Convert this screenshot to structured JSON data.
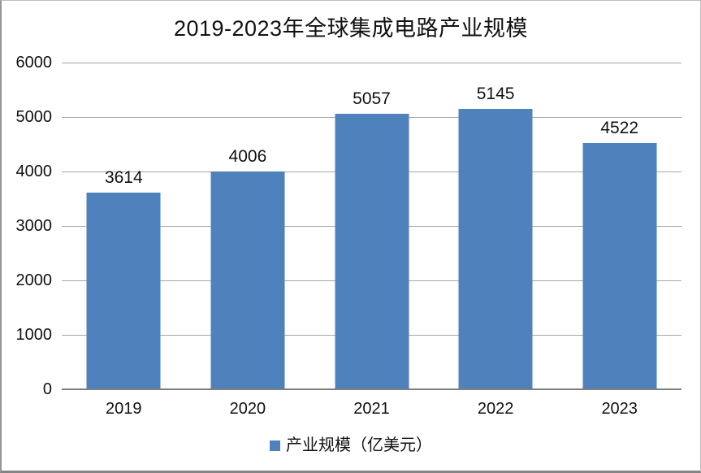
{
  "chart_data": {
    "type": "bar",
    "title": "2019-2023年全球集成电路产业规模",
    "categories": [
      "2019",
      "2020",
      "2021",
      "2022",
      "2023"
    ],
    "values": [
      3614,
      4006,
      5057,
      5145,
      4522
    ],
    "series": [
      {
        "name": "产业规模（亿美元）",
        "values": [
          3614,
          4006,
          5057,
          5145,
          4522
        ]
      }
    ],
    "legend": "产业规模（亿美元）",
    "legend_position": "bottom",
    "xlabel": "",
    "ylabel": "",
    "ylim": [
      0,
      6000
    ],
    "y_ticks": [
      0,
      1000,
      2000,
      3000,
      4000,
      5000,
      6000
    ],
    "grid": true,
    "colors": {
      "bar": "#4F81BD",
      "gridline": "#A6A6A6",
      "axis_line": "#7F7F7F",
      "text": "#111111",
      "background": "#FFFFFF",
      "frame_border": "#969696"
    }
  }
}
